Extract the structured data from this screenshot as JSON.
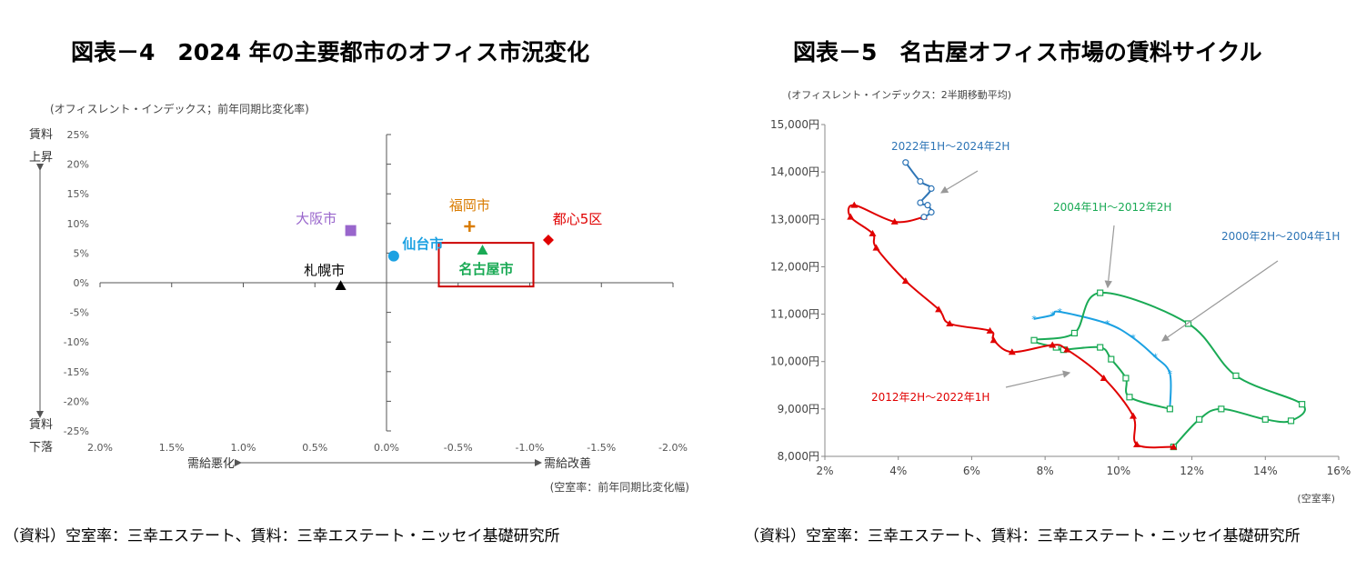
{
  "left": {
    "title": "図表－4　2024 年の主要都市のオフィス市況変化",
    "source": "（資料）空室率：三幸エステート、賃料：三幸エステート・ニッセイ基礎研究所"
  },
  "right": {
    "title": "図表－5　名古屋オフィス市場の賃料サイクル",
    "source": "（資料）空室率：三幸エステート、賃料：三幸エステート・ニッセイ基礎研究所"
  },
  "chart_data": [
    {
      "type": "scatter",
      "title": "図表－4　2024 年の主要都市のオフィス市況変化",
      "ylabel_note": "(オフィスレント・インデックス；前年同期比変化率)",
      "xlabel_note": "(空室率：前年同期比変化幅)",
      "x_reversed": true,
      "xlim": [
        2.0,
        -2.0
      ],
      "ylim": [
        -25,
        25
      ],
      "xticks": [
        "2.0%",
        "1.5%",
        "1.0%",
        "0.5%",
        "0.0%",
        "-0.5%",
        "-1.0%",
        "-1.5%",
        "-2.0%"
      ],
      "xtick_values": [
        2.0,
        1.5,
        1.0,
        0.5,
        0.0,
        -0.5,
        -1.0,
        -1.5,
        -2.0
      ],
      "yticks": [
        "25%",
        "20%",
        "15%",
        "10%",
        "5%",
        "0%",
        "-5%",
        "-10%",
        "-15%",
        "-20%",
        "-25%"
      ],
      "ytick_values": [
        25,
        20,
        15,
        10,
        5,
        0,
        -5,
        -10,
        -15,
        -20,
        -25
      ],
      "y_up_label": "賃料\n上昇",
      "y_down_label": "賃料\n下落",
      "x_left_label": "需給悪化",
      "x_right_label": "需給改善",
      "points": [
        {
          "name": "大阪市",
          "x": 0.25,
          "y": 8.8,
          "color": "#9966cc",
          "marker": "square",
          "bold": false
        },
        {
          "name": "札幌市",
          "x": 0.32,
          "y": -0.5,
          "color": "#000000",
          "marker": "triangle",
          "bold": false
        },
        {
          "name": "仙台市",
          "x": -0.05,
          "y": 4.5,
          "color": "#1ba1e2",
          "marker": "circle",
          "bold": true
        },
        {
          "name": "福岡市",
          "x": -0.58,
          "y": 9.5,
          "color": "#d97b00",
          "marker": "plus",
          "bold": false
        },
        {
          "name": "名古屋市",
          "x": -0.67,
          "y": 5.5,
          "color": "#1aaa55",
          "marker": "triangle",
          "bold": true
        },
        {
          "name": "都心5区",
          "x": -1.13,
          "y": 7.2,
          "color": "#e00000",
          "marker": "diamond",
          "bold": false
        }
      ],
      "highlight_box": {
        "label": "名古屋市",
        "color": "#cc0000"
      }
    },
    {
      "type": "line",
      "title": "図表－5　名古屋オフィス市場の賃料サイクル",
      "ylabel_note": "(オフィスレント・インデックス：2半期移動平均)",
      "xlabel_note": "(空室率)",
      "xlim": [
        2,
        16
      ],
      "ylim": [
        8000,
        15000
      ],
      "xticks": [
        "2%",
        "4%",
        "6%",
        "8%",
        "10%",
        "12%",
        "14%",
        "16%"
      ],
      "xtick_values": [
        2,
        4,
        6,
        8,
        10,
        12,
        14,
        16
      ],
      "yticks": [
        "15,000円",
        "14,000円",
        "13,000円",
        "12,000円",
        "11,000円",
        "10,000円",
        "9,000円",
        "8,000円"
      ],
      "ytick_values": [
        15000,
        14000,
        13000,
        12000,
        11000,
        10000,
        9000,
        8000
      ],
      "series": [
        {
          "name": "2000年2H～2004年1H",
          "color": "#1ba1e2",
          "marker": "star",
          "points": [
            [
              7.7,
              10900
            ],
            [
              8.2,
              10980
            ],
            [
              8.4,
              11050
            ],
            [
              9.7,
              10800
            ],
            [
              10.4,
              10500
            ],
            [
              11.0,
              10100
            ],
            [
              11.4,
              9750
            ],
            [
              11.4,
              9000
            ]
          ]
        },
        {
          "name": "2004年1H～2012年2H",
          "color": "#1aaa55",
          "marker": "square",
          "points": [
            [
              11.4,
              9000
            ],
            [
              10.3,
              9250
            ],
            [
              10.2,
              9650
            ],
            [
              9.8,
              10050
            ],
            [
              9.5,
              10300
            ],
            [
              8.5,
              10250
            ],
            [
              8.3,
              10300
            ],
            [
              7.7,
              10450
            ],
            [
              8.8,
              10600
            ],
            [
              9.5,
              11450
            ],
            [
              11.9,
              10800
            ],
            [
              13.2,
              9700
            ],
            [
              15.0,
              9100
            ],
            [
              14.7,
              8750
            ],
            [
              14.0,
              8780
            ],
            [
              12.8,
              9000
            ],
            [
              12.2,
              8780
            ],
            [
              11.5,
              8200
            ]
          ]
        },
        {
          "name": "2012年2H～2022年1H",
          "color": "#e00000",
          "marker": "triangle",
          "points": [
            [
              11.5,
              8200
            ],
            [
              10.5,
              8250
            ],
            [
              10.4,
              8850
            ],
            [
              9.6,
              9650
            ],
            [
              8.6,
              10250
            ],
            [
              8.2,
              10350
            ],
            [
              7.1,
              10200
            ],
            [
              6.6,
              10450
            ],
            [
              6.5,
              10650
            ],
            [
              5.4,
              10800
            ],
            [
              5.1,
              11100
            ],
            [
              4.2,
              11700
            ],
            [
              3.4,
              12400
            ],
            [
              3.3,
              12700
            ],
            [
              2.7,
              13050
            ],
            [
              2.8,
              13300
            ],
            [
              3.9,
              12950
            ],
            [
              4.7,
              13050
            ]
          ]
        },
        {
          "name": "2022年1H～2024年2H",
          "color": "#2e75b6",
          "marker": "circle",
          "points": [
            [
              4.7,
              13050
            ],
            [
              4.9,
              13150
            ],
            [
              4.8,
              13300
            ],
            [
              4.6,
              13350
            ],
            [
              4.9,
              13650
            ],
            [
              4.6,
              13800
            ],
            [
              4.2,
              14200
            ]
          ]
        }
      ],
      "labels": [
        {
          "text": "2022年1H～2024年2H",
          "color": "#2e75b6"
        },
        {
          "text": "2004年1H～2012年2H",
          "color": "#1aaa55"
        },
        {
          "text": "2000年2H～2004年1H",
          "color": "#2e75b6"
        },
        {
          "text": "2012年2H～2022年1H",
          "color": "#e00000"
        }
      ]
    }
  ]
}
